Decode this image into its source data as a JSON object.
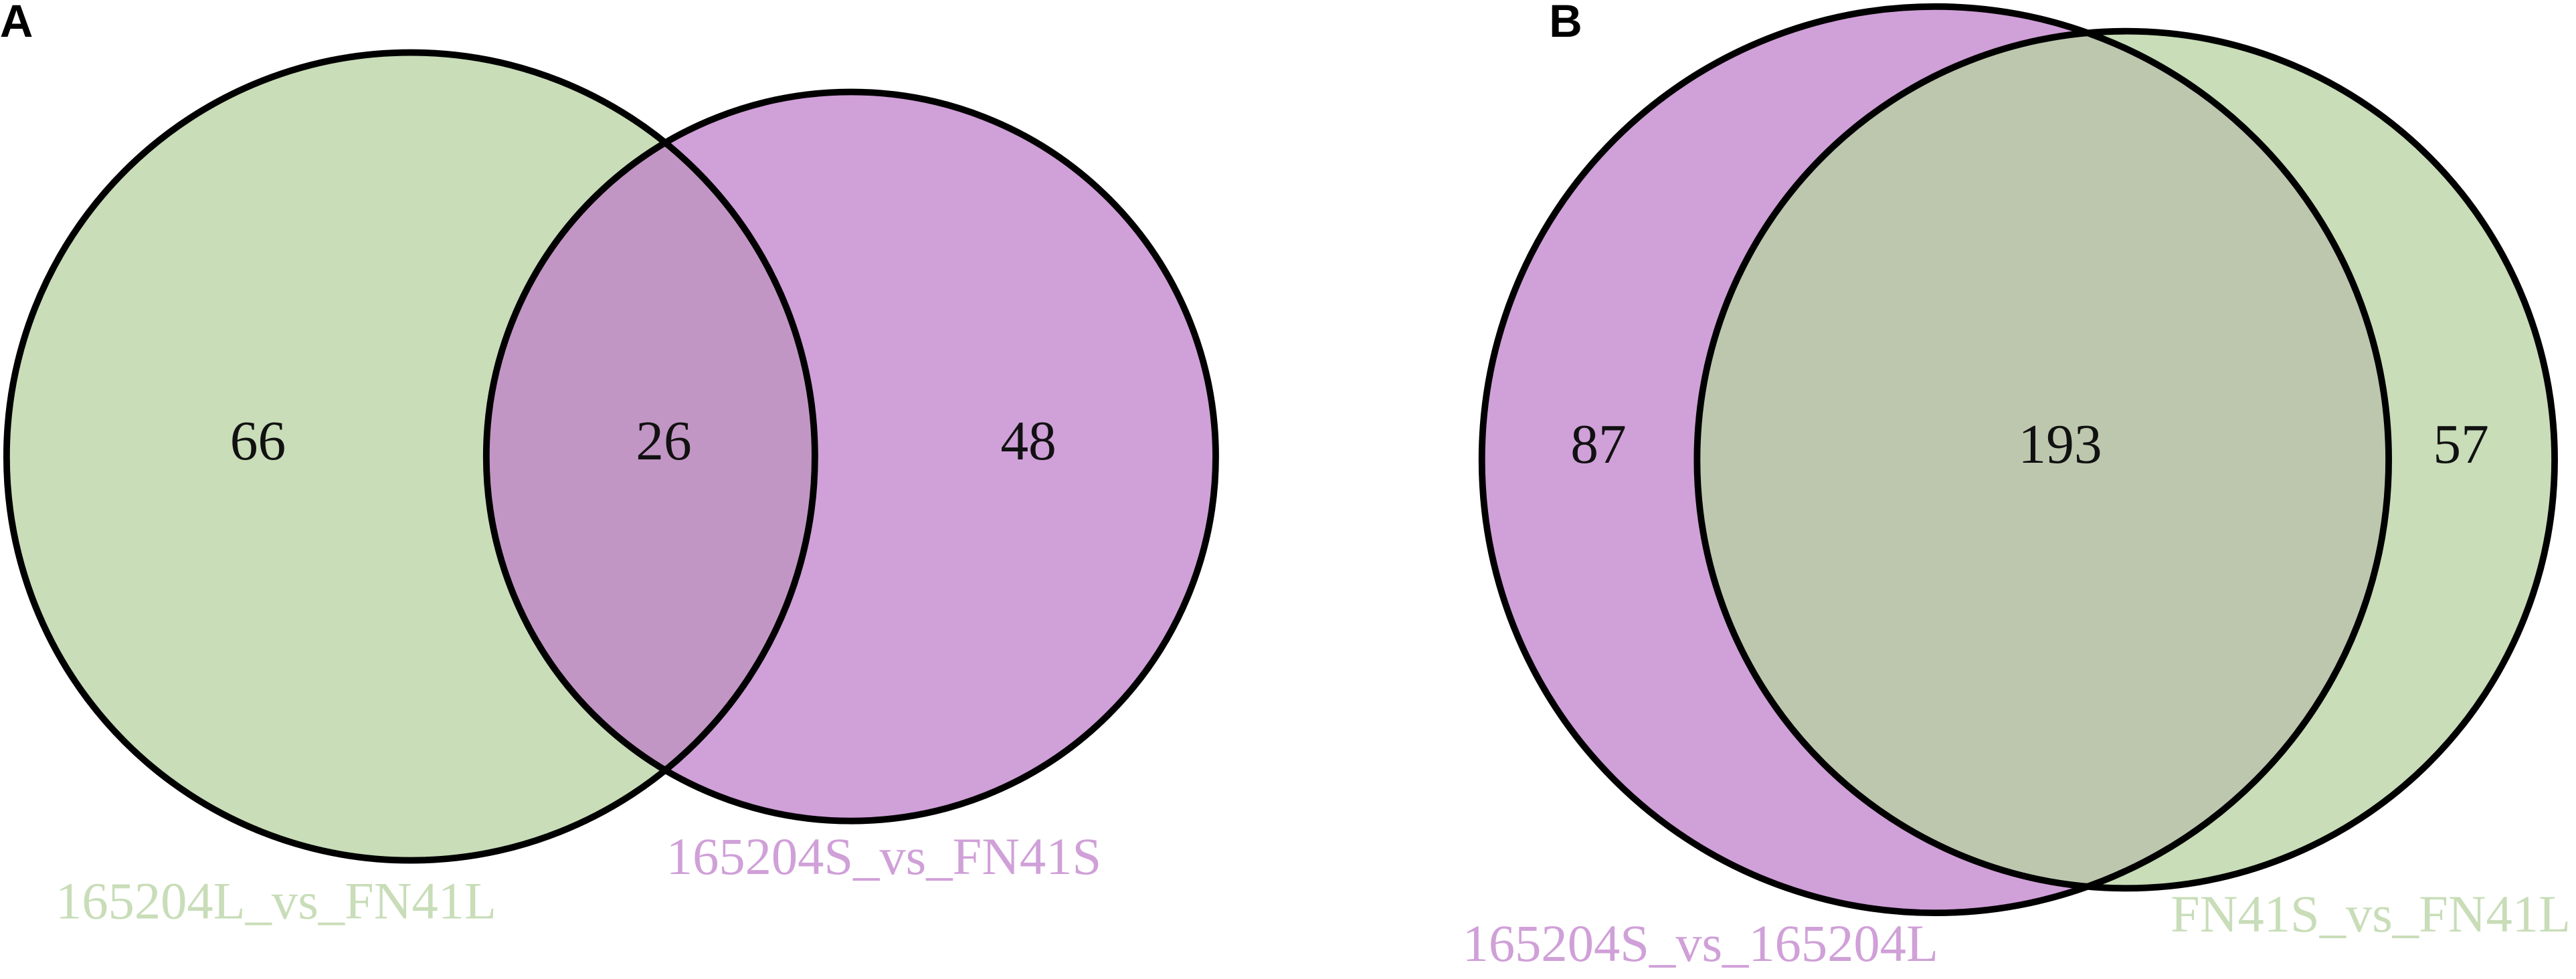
{
  "chart_data": [
    {
      "type": "venn",
      "panel_label": "A",
      "sets": [
        {
          "name": "165204L_vs_FN41L",
          "color": "#c8ddb8",
          "only": 66
        },
        {
          "name": "165204S_vs_FN41S",
          "color": "#d0a0d8",
          "only": 48
        }
      ],
      "intersection": 26,
      "overlap_color": "#c296c4"
    },
    {
      "type": "venn",
      "panel_label": "B",
      "sets": [
        {
          "name": "165204S_vs_165204L",
          "color": "#d0a0d8",
          "only": 87
        },
        {
          "name": "FN41S_vs_FN41L",
          "color": "#c8ddb8",
          "only": 57
        }
      ],
      "intersection": 193,
      "overlap_color": "#bcc7ae"
    }
  ]
}
